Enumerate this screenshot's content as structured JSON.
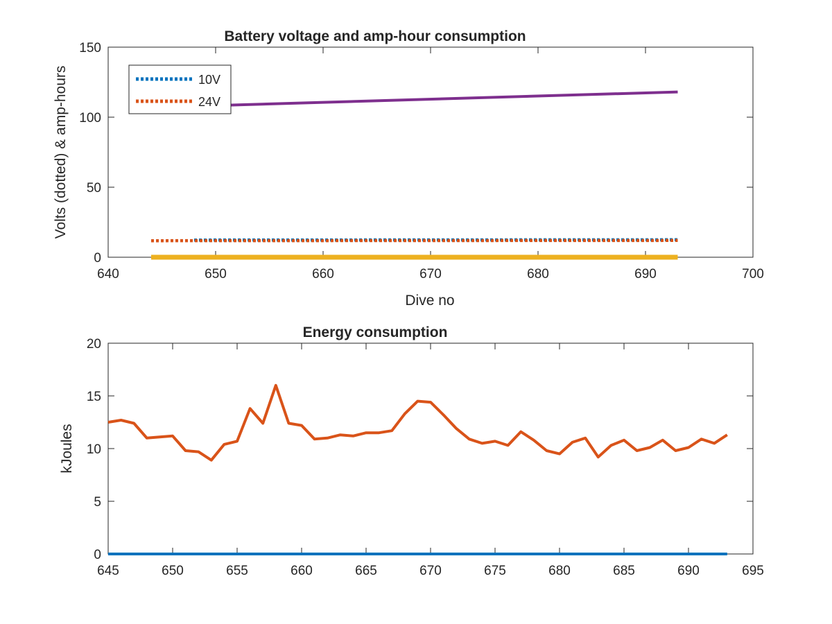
{
  "chart_data": [
    {
      "type": "line",
      "title": "Battery voltage and amp-hour consumption",
      "xlabel": "Dive no",
      "ylabel": "Volts (dotted) & amp-hours",
      "xlim": [
        640,
        700
      ],
      "ylim": [
        0,
        150
      ],
      "xticks": [
        640,
        650,
        660,
        670,
        680,
        690,
        700
      ],
      "yticks": [
        0,
        50,
        100,
        150
      ],
      "grid": false,
      "legend_location": "top-left",
      "series": [
        {
          "name": "10V",
          "style": "dotted",
          "color": "#0072BD",
          "x": [
            648,
            693
          ],
          "y": [
            12.3,
            12.5
          ]
        },
        {
          "name": "24V",
          "style": "dotted",
          "color": "#D95319",
          "x": [
            644,
            693
          ],
          "y": [
            11.8,
            12.0
          ]
        },
        {
          "style": "solid",
          "color": "#7E2F8E",
          "x": [
            644,
            693
          ],
          "y": [
            107,
            118
          ]
        },
        {
          "style": "solid",
          "color": "#EDB120",
          "x": [
            644,
            693
          ],
          "y": [
            0,
            0
          ]
        }
      ]
    },
    {
      "type": "line",
      "title": "Energy consumption",
      "xlabel": "",
      "ylabel": "kJoules",
      "xlim": [
        645,
        695
      ],
      "ylim": [
        0,
        20
      ],
      "xticks": [
        645,
        650,
        655,
        660,
        665,
        670,
        675,
        680,
        685,
        690,
        695
      ],
      "yticks": [
        0,
        5,
        10,
        15,
        20
      ],
      "grid": false,
      "series": [
        {
          "style": "solid",
          "color": "#0072BD",
          "x": [
            645,
            693
          ],
          "y": [
            0,
            0
          ]
        },
        {
          "style": "solid",
          "color": "#D95319",
          "x": [
            645,
            646,
            647,
            648,
            649,
            650,
            651,
            652,
            653,
            654,
            655,
            656,
            657,
            658,
            659,
            660,
            661,
            662,
            663,
            664,
            665,
            666,
            667,
            668,
            669,
            670,
            671,
            672,
            673,
            674,
            675,
            676,
            677,
            678,
            679,
            680,
            681,
            682,
            683,
            684,
            685,
            686,
            687,
            688,
            689,
            690,
            691,
            692,
            693
          ],
          "y": [
            12.5,
            12.7,
            12.4,
            11.0,
            11.1,
            11.2,
            9.8,
            9.7,
            8.9,
            10.4,
            10.7,
            13.8,
            12.4,
            16.0,
            12.4,
            12.2,
            10.9,
            11.0,
            11.3,
            11.2,
            11.5,
            11.5,
            11.7,
            13.3,
            14.5,
            14.4,
            13.2,
            11.9,
            10.9,
            10.5,
            10.7,
            10.3,
            11.6,
            10.8,
            9.8,
            9.5,
            10.6,
            11.0,
            9.2,
            10.3,
            10.8,
            9.8,
            10.1,
            10.8,
            9.8,
            10.1,
            10.9,
            10.5,
            11.3
          ]
        }
      ]
    }
  ]
}
